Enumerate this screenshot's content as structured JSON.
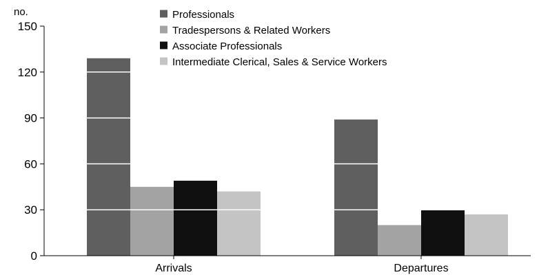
{
  "chart_data": {
    "type": "bar",
    "title": "",
    "xlabel": "",
    "ylabel": "no.",
    "ylim": [
      0,
      150
    ],
    "yticks": [
      0,
      30,
      60,
      90,
      120,
      150
    ],
    "gridlines": "white horizontal lines drawn over bars",
    "legend_placement": "top-center",
    "categories": [
      "Arrivals",
      "Departures"
    ],
    "series": [
      {
        "name": "Professionals",
        "color": "#5f5f5f",
        "values": [
          129,
          89
        ]
      },
      {
        "name": "Tradespersons & Related Workers",
        "color": "#a3a3a3",
        "values": [
          45,
          20
        ]
      },
      {
        "name": "Associate Professionals",
        "color": "#101010",
        "values": [
          49,
          30
        ]
      },
      {
        "name": "Intermediate Clerical, Sales & Service Workers",
        "color": "#c4c4c4",
        "values": [
          42,
          27
        ]
      }
    ]
  }
}
